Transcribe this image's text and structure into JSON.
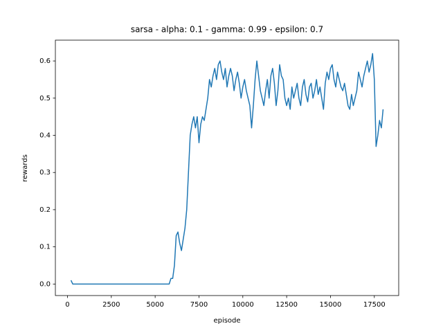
{
  "chart_data": {
    "type": "line",
    "title": "sarsa - alpha: 0.1 - gamma: 0.99 - epsilon: 0.7",
    "x_label": "episode",
    "y_label": "rewards",
    "color": "#1f77b4",
    "x": [
      200,
      300,
      5800,
      5900,
      6000,
      6100,
      6200,
      6300,
      6400,
      6500,
      6600,
      6700,
      6800,
      6900,
      7000,
      7100,
      7200,
      7300,
      7400,
      7500,
      7600,
      7700,
      7800,
      7900,
      8000,
      8100,
      8200,
      8300,
      8400,
      8500,
      8600,
      8700,
      8800,
      8900,
      9000,
      9100,
      9200,
      9300,
      9400,
      9500,
      9600,
      9700,
      9800,
      9900,
      10000,
      10100,
      10200,
      10300,
      10400,
      10500,
      10600,
      10700,
      10800,
      10900,
      11000,
      11100,
      11200,
      11300,
      11400,
      11500,
      11600,
      11700,
      11800,
      11900,
      12000,
      12100,
      12200,
      12300,
      12400,
      12500,
      12600,
      12700,
      12800,
      12900,
      13000,
      13100,
      13200,
      13300,
      13400,
      13500,
      13600,
      13700,
      13800,
      13900,
      14000,
      14100,
      14200,
      14300,
      14400,
      14500,
      14600,
      14700,
      14800,
      14900,
      15000,
      15100,
      15200,
      15300,
      15400,
      15500,
      15600,
      15700,
      15800,
      15900,
      16000,
      16100,
      16200,
      16300,
      16400,
      16500,
      16600,
      16700,
      16800,
      16900,
      17000,
      17100,
      17200,
      17300,
      17400,
      17500,
      17600,
      17700,
      17800,
      17900,
      18000
    ],
    "values": [
      0.01,
      0,
      0,
      0.015,
      0.015,
      0.05,
      0.13,
      0.14,
      0.11,
      0.09,
      0.12,
      0.15,
      0.2,
      0.3,
      0.4,
      0.43,
      0.45,
      0.42,
      0.45,
      0.38,
      0.43,
      0.45,
      0.44,
      0.47,
      0.5,
      0.55,
      0.53,
      0.56,
      0.58,
      0.55,
      0.59,
      0.6,
      0.57,
      0.55,
      0.58,
      0.53,
      0.56,
      0.58,
      0.56,
      0.52,
      0.55,
      0.57,
      0.54,
      0.5,
      0.53,
      0.55,
      0.52,
      0.5,
      0.48,
      0.42,
      0.48,
      0.55,
      0.6,
      0.56,
      0.52,
      0.5,
      0.48,
      0.52,
      0.55,
      0.5,
      0.56,
      0.58,
      0.54,
      0.48,
      0.52,
      0.59,
      0.56,
      0.55,
      0.5,
      0.48,
      0.5,
      0.47,
      0.53,
      0.5,
      0.52,
      0.54,
      0.5,
      0.48,
      0.53,
      0.55,
      0.51,
      0.49,
      0.53,
      0.54,
      0.5,
      0.52,
      0.55,
      0.51,
      0.53,
      0.5,
      0.47,
      0.54,
      0.57,
      0.55,
      0.58,
      0.59,
      0.55,
      0.53,
      0.57,
      0.55,
      0.53,
      0.52,
      0.54,
      0.51,
      0.48,
      0.47,
      0.51,
      0.48,
      0.5,
      0.52,
      0.57,
      0.55,
      0.53,
      0.56,
      0.58,
      0.6,
      0.57,
      0.59,
      0.62,
      0.55,
      0.37,
      0.4,
      0.44,
      0.42,
      0.47
    ],
    "xlim": [
      -690,
      18890
    ],
    "xticks": [
      0,
      2500,
      5000,
      7500,
      10000,
      12500,
      15000,
      17500
    ],
    "ylim": [
      -0.031,
      0.656
    ],
    "yticks": [
      {
        "value": 0,
        "label": "0.0"
      },
      0.1,
      0.2,
      0.3,
      0.4,
      0.5,
      0.6
    ]
  }
}
